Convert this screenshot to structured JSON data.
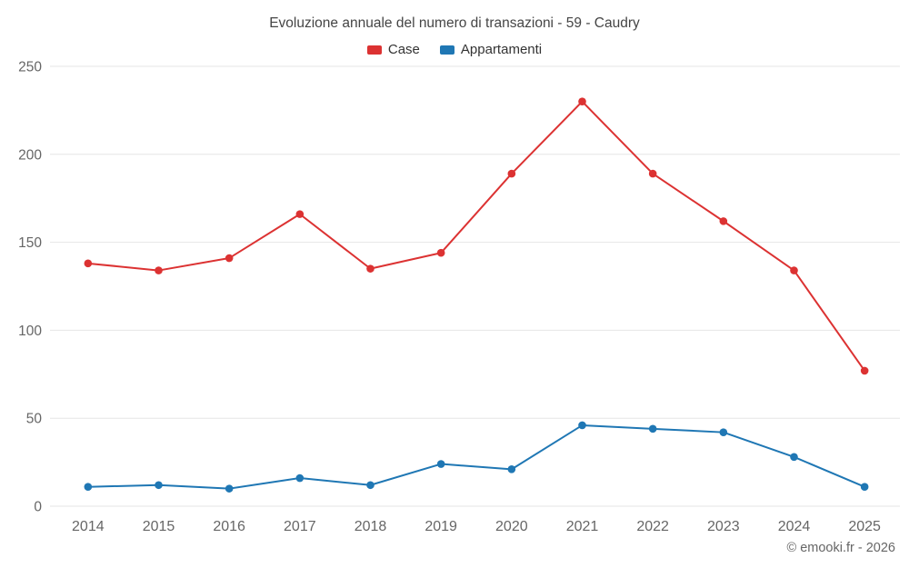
{
  "chart_data": {
    "type": "line",
    "title": "Evoluzione annuale del numero di transazioni - 59 - Caudry",
    "categories": [
      "2014",
      "2015",
      "2016",
      "2017",
      "2018",
      "2019",
      "2020",
      "2021",
      "2022",
      "2023",
      "2024",
      "2025"
    ],
    "series": [
      {
        "name": "Case",
        "color": "#dc3232",
        "values": [
          138,
          134,
          141,
          166,
          135,
          144,
          189,
          230,
          189,
          162,
          134,
          77
        ]
      },
      {
        "name": "Appartamenti",
        "color": "#1f77b4",
        "values": [
          11,
          12,
          10,
          16,
          12,
          24,
          21,
          46,
          44,
          42,
          28,
          11
        ]
      }
    ],
    "ylim": [
      0,
      250
    ],
    "yticks": [
      0,
      50,
      100,
      150,
      200,
      250
    ],
    "grid": true,
    "legend_position": "top",
    "grid_color": "#e6e6e6",
    "axis_label_color": "#666666"
  },
  "footer": {
    "copyright": "© emooki.fr - 2026"
  }
}
